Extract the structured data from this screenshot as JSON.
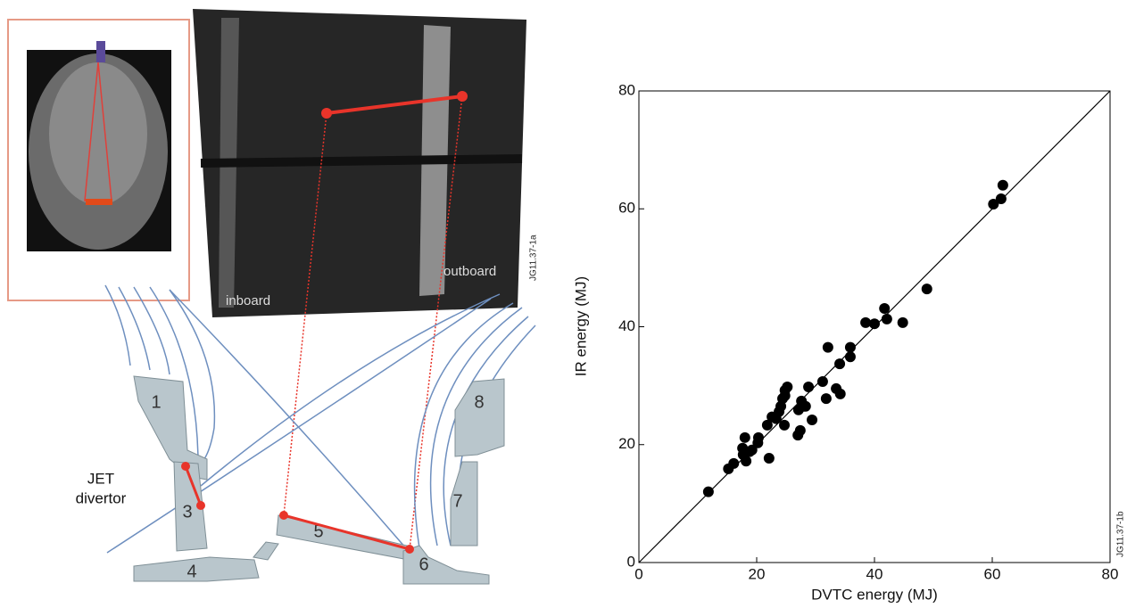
{
  "diagram": {
    "label_lines": [
      "JET",
      "divertor"
    ],
    "tiles": [
      "1",
      "3",
      "4",
      "5",
      "6",
      "7",
      "8"
    ],
    "camera_labels": [
      "inboard",
      "outboard"
    ],
    "figure_id": "JG11.37-1a"
  },
  "chart_data": {
    "type": "scatter",
    "x_label": "DVTC energy (MJ)",
    "y_label": "IR energy (MJ)",
    "figure_id": "JG11.37-1b",
    "x": [
      11.8,
      15.2,
      16.1,
      17.6,
      17.7,
      18,
      18.2,
      18.8,
      19.2,
      20.2,
      20.3,
      21.8,
      22.1,
      22.6,
      23.3,
      23.8,
      24.1,
      24.4,
      24.7,
      24.8,
      24.8,
      25.2,
      27.1,
      27,
      27.4,
      27.6,
      28,
      28.3,
      28.8,
      29.4,
      31.2,
      31.8,
      32.1,
      33.5,
      34.1,
      34.2,
      35.9,
      35.9,
      38.5,
      40,
      41.7,
      42.1,
      44.8,
      48.9,
      60.2,
      61.5,
      61.8
    ],
    "values": [
      12,
      15.9,
      16.8,
      19.4,
      18.3,
      21.2,
      17.2,
      18.8,
      19.1,
      20.3,
      21.2,
      23.3,
      17.7,
      24.7,
      24.4,
      25.6,
      26.5,
      27.8,
      23.3,
      28.3,
      29.2,
      29.8,
      25.9,
      21.6,
      22.4,
      27.4,
      26.5,
      26.5,
      29.8,
      24.2,
      30.7,
      27.8,
      36.5,
      29.5,
      33.7,
      28.6,
      34.9,
      36.5,
      40.7,
      40.5,
      43.1,
      41.3,
      40.7,
      46.4,
      60.8,
      61.7,
      64
    ],
    "color": "#000000",
    "xlim": [
      0,
      80
    ],
    "ylim": [
      0,
      80
    ],
    "xticks": [
      0,
      20,
      40,
      60,
      80
    ],
    "yticks": [
      0,
      20,
      40,
      60,
      80
    ],
    "diagonal": true
  }
}
